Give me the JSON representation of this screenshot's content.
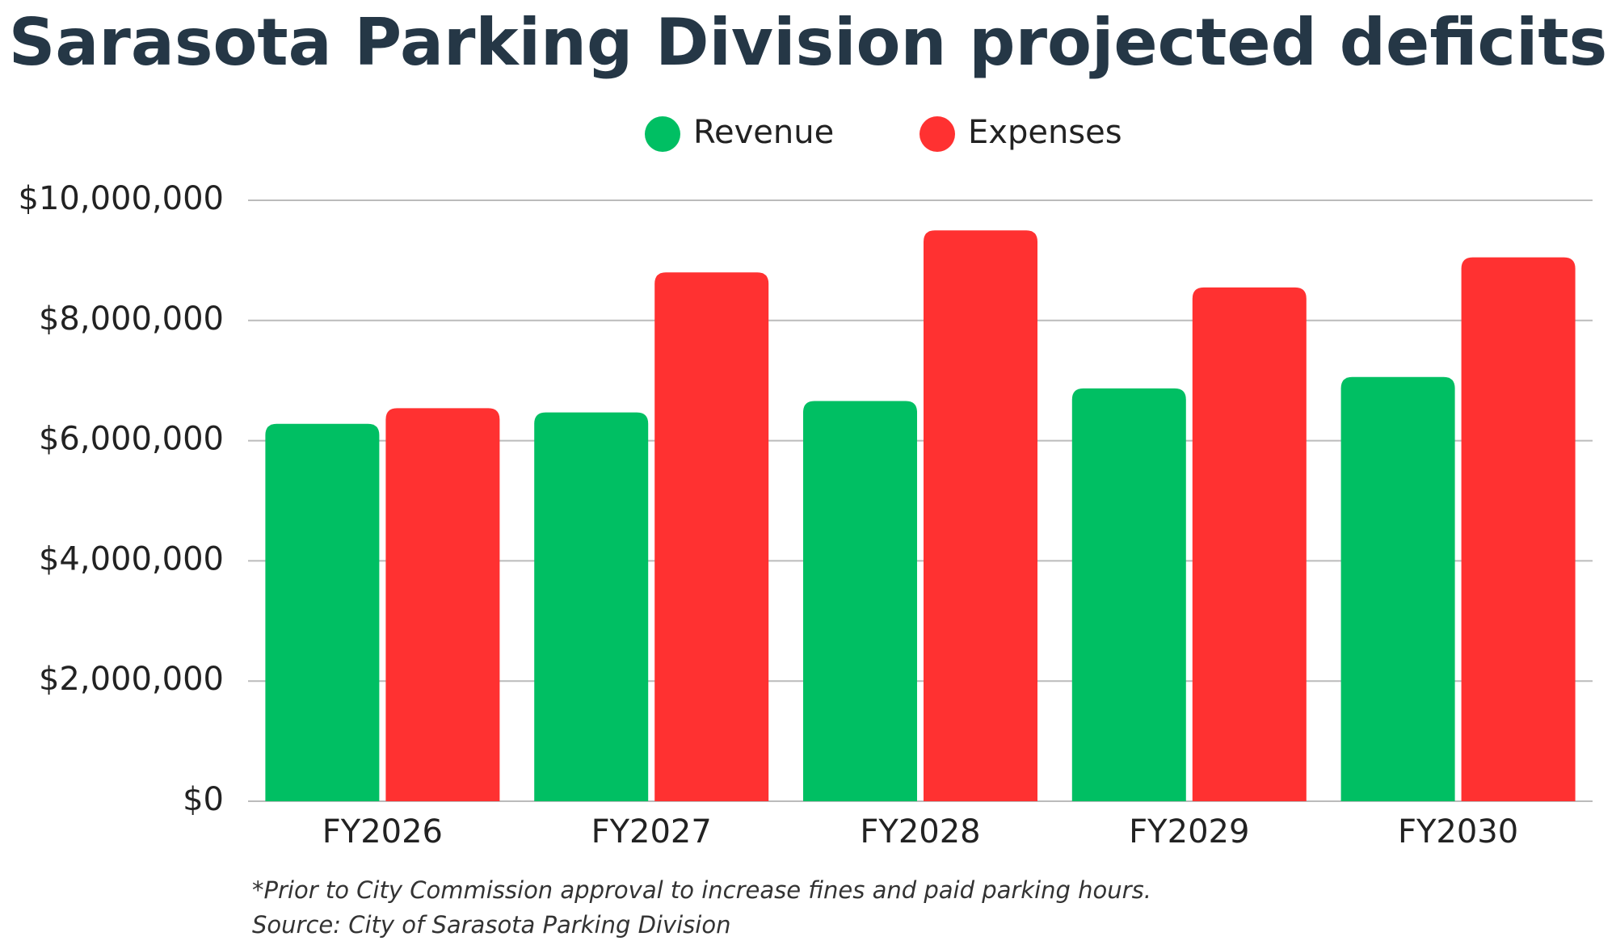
{
  "chart_data": {
    "type": "bar",
    "title": "Sarasota Parking Division projected deficits",
    "categories": [
      "FY2026",
      "FY2027",
      "FY2028",
      "FY2029",
      "FY2030"
    ],
    "series": [
      {
        "name": "Revenue",
        "color": "#00bf63",
        "values": [
          6280000,
          6470000,
          6660000,
          6870000,
          7060000
        ]
      },
      {
        "name": "Expenses",
        "color": "#ff3131",
        "values": [
          6540000,
          8800000,
          9500000,
          8550000,
          9050000
        ]
      }
    ],
    "ylim": [
      0,
      10000000
    ],
    "yticks": [
      {
        "value": 0,
        "label": "$0"
      },
      {
        "value": 2000000,
        "label": "$2,000,000"
      },
      {
        "value": 4000000,
        "label": "$4,000,000"
      },
      {
        "value": 6000000,
        "label": "$6,000,000"
      },
      {
        "value": 8000000,
        "label": "$8,000,000"
      },
      {
        "value": 10000000,
        "label": "$10,000,000"
      }
    ],
    "grid": true,
    "legend": "top",
    "notes": [
      "*Prior to City Commission approval to increase fines and paid parking hours.",
      "Source: City of Sarasota Parking Division"
    ]
  }
}
